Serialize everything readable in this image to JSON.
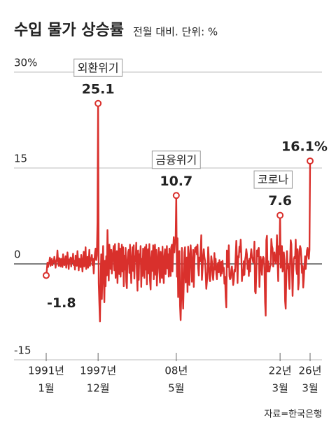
{
  "chart_data": {
    "type": "line",
    "title": "수입 물가 상승률",
    "subtitle": "전월 대비. 단위: %",
    "source": "자료=한국은행",
    "color": "#d9302c",
    "ylim": [
      -15,
      30
    ],
    "yticks": [
      -15,
      0,
      15,
      {
        "value": 30,
        "label": "30%"
      }
    ],
    "grid": true,
    "xticks": [
      {
        "value": "1991-01",
        "label": [
          "1991년",
          "1월"
        ]
      },
      {
        "value": "1997-12",
        "label": [
          "1997년",
          "12월"
        ]
      },
      {
        "value": "2008-05",
        "label": [
          "08년",
          "5월"
        ]
      },
      {
        "value": "2022-03",
        "label": [
          "22년",
          "3월"
        ]
      },
      {
        "value": "2026-03",
        "label": [
          "26년",
          "3월"
        ]
      }
    ],
    "annotations": [
      {
        "x": "1997-12",
        "text": "외환위기"
      },
      {
        "x": "2008-05",
        "text": "금융위기"
      },
      {
        "x": "2022-03",
        "text": "코로나"
      }
    ],
    "x": [
      "1991-01",
      "1991-02",
      "1991-03",
      "1991-04",
      "1991-05",
      "1991-06",
      "1991-07",
      "1991-08",
      "1991-09",
      "1991-10",
      "1991-11",
      "1991-12",
      "1992-01",
      "1992-02",
      "1992-03",
      "1992-04",
      "1992-05",
      "1992-06",
      "1992-07",
      "1992-08",
      "1992-09",
      "1992-10",
      "1992-11",
      "1992-12",
      "1993-01",
      "1993-02",
      "1993-03",
      "1993-04",
      "1993-05",
      "1993-06",
      "1993-07",
      "1993-08",
      "1993-09",
      "1993-10",
      "1993-11",
      "1993-12",
      "1994-01",
      "1994-02",
      "1994-03",
      "1994-04",
      "1994-05",
      "1994-06",
      "1994-07",
      "1994-08",
      "1994-09",
      "1994-10",
      "1994-11",
      "1994-12",
      "1995-01",
      "1995-02",
      "1995-03",
      "1995-04",
      "1995-05",
      "1995-06",
      "1995-07",
      "1995-08",
      "1995-09",
      "1995-10",
      "1995-11",
      "1995-12",
      "1996-01",
      "1996-02",
      "1996-03",
      "1996-04",
      "1996-05",
      "1996-06",
      "1996-07",
      "1996-08",
      "1996-09",
      "1996-10",
      "1996-11",
      "1996-12",
      "1997-01",
      "1997-02",
      "1997-03",
      "1997-04",
      "1997-05",
      "1997-06",
      "1997-07",
      "1997-08",
      "1997-09",
      "1997-10",
      "1997-11",
      "1997-12",
      "1998-01",
      "1998-02",
      "1998-03",
      "1998-04",
      "1998-05",
      "1998-06",
      "1998-07",
      "1998-08",
      "1998-09",
      "1998-10",
      "1998-11",
      "1998-12",
      "1999-01",
      "1999-02",
      "1999-03",
      "1999-04",
      "1999-05",
      "1999-06",
      "1999-07",
      "1999-08",
      "1999-09",
      "1999-10",
      "1999-11",
      "1999-12",
      "2000-01",
      "2000-02",
      "2000-03",
      "2000-04",
      "2000-05",
      "2000-06",
      "2000-07",
      "2000-08",
      "2000-09",
      "2000-10",
      "2000-11",
      "2000-12",
      "2001-01",
      "2001-02",
      "2001-03",
      "2001-04",
      "2001-05",
      "2001-06",
      "2001-07",
      "2001-08",
      "2001-09",
      "2001-10",
      "2001-11",
      "2001-12",
      "2002-01",
      "2002-02",
      "2002-03",
      "2002-04",
      "2002-05",
      "2002-06",
      "2002-07",
      "2002-08",
      "2002-09",
      "2002-10",
      "2002-11",
      "2002-12",
      "2003-01",
      "2003-02",
      "2003-03",
      "2003-04",
      "2003-05",
      "2003-06",
      "2003-07",
      "2003-08",
      "2003-09",
      "2003-10",
      "2003-11",
      "2003-12",
      "2004-01",
      "2004-02",
      "2004-03",
      "2004-04",
      "2004-05",
      "2004-06",
      "2004-07",
      "2004-08",
      "2004-09",
      "2004-10",
      "2004-11",
      "2004-12",
      "2005-01",
      "2005-02",
      "2005-03",
      "2005-04",
      "2005-05",
      "2005-06",
      "2005-07",
      "2005-08",
      "2005-09",
      "2005-10",
      "2005-11",
      "2005-12",
      "2006-01",
      "2006-02",
      "2006-03",
      "2006-04",
      "2006-05",
      "2006-06",
      "2006-07",
      "2006-08",
      "2006-09",
      "2006-10",
      "2006-11",
      "2006-12",
      "2007-01",
      "2007-02",
      "2007-03",
      "2007-04",
      "2007-05",
      "2007-06",
      "2007-07",
      "2007-08",
      "2007-09",
      "2007-10",
      "2007-11",
      "2007-12",
      "2008-01",
      "2008-02",
      "2008-03",
      "2008-04",
      "2008-05",
      "2008-06",
      "2008-07",
      "2008-08",
      "2008-09",
      "2008-10",
      "2008-11",
      "2008-12",
      "2009-01",
      "2009-02",
      "2009-03",
      "2009-04",
      "2009-05",
      "2009-06",
      "2009-07",
      "2009-08",
      "2009-09",
      "2009-10",
      "2009-11",
      "2009-12",
      "2010-01",
      "2010-02",
      "2010-03",
      "2010-04",
      "2010-05",
      "2010-06",
      "2010-07",
      "2010-08",
      "2010-09",
      "2010-10",
      "2010-11",
      "2010-12",
      "2011-01",
      "2011-02",
      "2011-03",
      "2011-04",
      "2011-05",
      "2011-06",
      "2011-07",
      "2011-08",
      "2011-09",
      "2011-10",
      "2011-11",
      "2011-12",
      "2012-01",
      "2012-02",
      "2012-03",
      "2012-04",
      "2012-05",
      "2012-06",
      "2012-07",
      "2012-08",
      "2012-09",
      "2012-10",
      "2012-11",
      "2012-12",
      "2013-01",
      "2013-02",
      "2013-03",
      "2013-04",
      "2013-05",
      "2013-06",
      "2013-07",
      "2013-08",
      "2013-09",
      "2013-10",
      "2013-11",
      "2013-12",
      "2014-01",
      "2014-02",
      "2014-03",
      "2014-04",
      "2014-05",
      "2014-06",
      "2014-07",
      "2014-08",
      "2014-09",
      "2014-10",
      "2014-11",
      "2014-12",
      "2015-01",
      "2015-02",
      "2015-03",
      "2015-04",
      "2015-05",
      "2015-06",
      "2015-07",
      "2015-08",
      "2015-09",
      "2015-10",
      "2015-11",
      "2015-12",
      "2016-01",
      "2016-02",
      "2016-03",
      "2016-04",
      "2016-05",
      "2016-06",
      "2016-07",
      "2016-08",
      "2016-09",
      "2016-10",
      "2016-11",
      "2016-12",
      "2017-01",
      "2017-02",
      "2017-03",
      "2017-04",
      "2017-05",
      "2017-06",
      "2017-07",
      "2017-08",
      "2017-09",
      "2017-10",
      "2017-11",
      "2017-12",
      "2018-01",
      "2018-02",
      "2018-03",
      "2018-04",
      "2018-05",
      "2018-06",
      "2018-07",
      "2018-08",
      "2018-09",
      "2018-10",
      "2018-11",
      "2018-12",
      "2019-01",
      "2019-02",
      "2019-03",
      "2019-04",
      "2019-05",
      "2019-06",
      "2019-07",
      "2019-08",
      "2019-09",
      "2019-10",
      "2019-11",
      "2019-12",
      "2020-01",
      "2020-02",
      "2020-03",
      "2020-04",
      "2020-05",
      "2020-06",
      "2020-07",
      "2020-08",
      "2020-09",
      "2020-10",
      "2020-11",
      "2020-12",
      "2021-01",
      "2021-02",
      "2021-03",
      "2021-04",
      "2021-05",
      "2021-06",
      "2021-07",
      "2021-08",
      "2021-09",
      "2021-10",
      "2021-11",
      "2021-12",
      "2022-01",
      "2022-02",
      "2022-03",
      "2022-04",
      "2022-05",
      "2022-06",
      "2022-07",
      "2022-08",
      "2022-09",
      "2022-10",
      "2022-11",
      "2022-12",
      "2023-01",
      "2023-02",
      "2023-03",
      "2023-04",
      "2023-05",
      "2023-06",
      "2023-07",
      "2023-08",
      "2023-09",
      "2023-10",
      "2023-11",
      "2023-12",
      "2024-01",
      "2024-02",
      "2024-03",
      "2024-04",
      "2024-05",
      "2024-06",
      "2024-07",
      "2024-08",
      "2024-09",
      "2024-10",
      "2024-11",
      "2024-12",
      "2025-01",
      "2025-02",
      "2025-03",
      "2025-04",
      "2025-05",
      "2025-06",
      "2025-07",
      "2025-08",
      "2025-09",
      "2025-10",
      "2025-11",
      "2025-12",
      "2026-01",
      "2026-02",
      "2026-03"
    ],
    "values": [
      -1.8,
      -1.0,
      0.2,
      -0.5,
      0.1,
      0.3,
      1.0,
      -0.3,
      0.4,
      0.8,
      -0.2,
      0.5,
      0.2,
      1.1,
      0.5,
      -0.6,
      0.3,
      0.7,
      2.1,
      0.4,
      -0.3,
      0.9,
      0.6,
      -0.4,
      0.8,
      0.3,
      -0.5,
      1.5,
      0.2,
      -0.2,
      0.6,
      1.2,
      -0.6,
      0.4,
      1.8,
      0.5,
      -0.8,
      0.7,
      0.3,
      1.0,
      -0.4,
      0.9,
      0.2,
      1.6,
      -0.2,
      0.5,
      -0.9,
      1.3,
      0.4,
      -0.3,
      2.0,
      0.6,
      -1.0,
      0.8,
      0.3,
      -0.5,
      1.4,
      0.1,
      -1.2,
      0.7,
      1.9,
      -0.4,
      0.6,
      2.6,
      -0.8,
      0.5,
      1.1,
      -0.6,
      0.3,
      2.2,
      -0.3,
      0.9,
      0.6,
      1.4,
      -0.2,
      0.8,
      -1.5,
      0.4,
      1.7,
      2.4,
      0.6,
      1.3,
      6.5,
      25.1,
      -3.0,
      -6.2,
      -9.0,
      -2.5,
      1.5,
      -5.5,
      -1.0,
      2.8,
      -2.2,
      -6.0,
      0.5,
      -3.5,
      1.2,
      -1.8,
      5.3,
      0.8,
      -2.6,
      3.0,
      1.5,
      -0.8,
      2.2,
      -1.5,
      0.6,
      1.9,
      2.8,
      -1.0,
      3.1,
      -2.2,
      1.0,
      2.0,
      -3.0,
      0.7,
      3.2,
      -1.6,
      2.4,
      -2.0,
      0.5,
      3.0,
      -1.2,
      2.6,
      -3.5,
      1.3,
      -0.9,
      2.5,
      -2.8,
      -3.8,
      0.6,
      1.8,
      2.2,
      -1.4,
      3.0,
      -0.5,
      -3.0,
      0.9,
      2.6,
      -1.1,
      2.9,
      -2.3,
      1.2,
      0.4,
      3.3,
      -1.6,
      -4.2,
      2.1,
      -2.5,
      1.5,
      0.3,
      2.8,
      -3.6,
      0.8,
      -1.9,
      2.4,
      1.6,
      -2.2,
      2.6,
      -0.9,
      3.0,
      -3.2,
      1.8,
      2.3,
      -1.5,
      3.1,
      -2.6,
      -4.0,
      0.9,
      2.0,
      -1.1,
      2.9,
      -2.4,
      1.6,
      3.0,
      -1.7,
      2.2,
      -3.4,
      -1.0,
      1.4,
      2.5,
      -1.3,
      -2.9,
      1.9,
      0.4,
      -2.2,
      2.7,
      -0.8,
      -3.0,
      1.1,
      2.3,
      -1.6,
      0.6,
      2.8,
      -0.7,
      1.5,
      -2.0,
      2.4,
      1.0,
      -1.9,
      2.6,
      3.0,
      -1.2,
      2.1,
      4.2,
      1.8,
      3.5,
      3.9,
      10.7,
      -2.0,
      4.0,
      -5.2,
      1.5,
      2.0,
      -6.5,
      -8.8,
      -5.0,
      2.5,
      -3.6,
      -7.0,
      -3.2,
      1.8,
      2.6,
      -2.9,
      -1.6,
      1.0,
      -4.4,
      2.7,
      1.2,
      -3.3,
      0.5,
      2.9,
      0.9,
      -2.8,
      -1.1,
      2.2,
      -3.6,
      0.3,
      2.5,
      1.9,
      2.7,
      1.5,
      3.0,
      -0.6,
      -1.8,
      1.0,
      0.4,
      2.1,
      4.5,
      -2.5,
      -0.9,
      1.2,
      2.3,
      1.1,
      0.5,
      -1.5,
      -3.9,
      -2.8,
      -1.2,
      2.6,
      0.9,
      -2.3,
      -2.7,
      -1.0,
      1.2,
      0.4,
      -1.7,
      -2.5,
      -1.0,
      1.7,
      -0.9,
      0.8,
      -1.5,
      -2.4,
      -0.3,
      0.2,
      -1.3,
      0.6,
      -0.8,
      -1.9,
      0.3,
      -1.5,
      0.5,
      -1.1,
      -0.6,
      -3.1,
      -2.0,
      -5.2,
      -6.8,
      2.1,
      1.8,
      -0.5,
      2.9,
      -1.9,
      -2.4,
      -2.2,
      -1.0,
      -0.4,
      -1.6,
      -3.3,
      -2.5,
      -0.9,
      -1.2,
      1.3,
      3.6,
      0.8,
      -3.0,
      1.2,
      1.0,
      2.7,
      1.9,
      3.8,
      1.5,
      -2.7,
      -1.0,
      -1.8,
      0.4,
      -1.7,
      0.6,
      1.2,
      2.3,
      1.5,
      -0.8,
      0.5,
      -1.9,
      0.8,
      -1.2,
      1.4,
      2.3,
      1.1,
      0.8,
      0.2,
      0.9,
      3.5,
      -4.3,
      -4.6,
      -1.5,
      2.1,
      1.2,
      2.3,
      2.5,
      -3.6,
      -0.3,
      1.1,
      -0.5,
      -1.7,
      0.7,
      1.1,
      0.9,
      -0.8,
      -6.0,
      -8.1,
      3.7,
      4.4,
      -1.2,
      0.4,
      -1.2,
      -1.2,
      -0.4,
      -0.2,
      3.9,
      2.8,
      2.4,
      -0.4,
      1.2,
      1.8,
      0.6,
      0.1,
      1.4,
      4.5,
      0.3,
      -2.7,
      2.8,
      1.5,
      7.6,
      -0.6,
      0.7,
      2.8,
      -1.2,
      -0.7,
      1.8,
      0.6,
      -5.8,
      -7.0,
      -1.7,
      2.0,
      -0.7,
      0.0,
      -2.5,
      -3.9,
      0.2,
      3.7,
      3.1,
      -0.8,
      -5.0,
      -1.4,
      0.8,
      1.1,
      0.9,
      3.8,
      -0.8,
      -1.6,
      2.3,
      -4.0,
      -2.9,
      1.9,
      2.8,
      2.4,
      1.0,
      -1.4,
      -0.3,
      -3.7,
      -2.3,
      -0.4,
      1.2,
      -0.8,
      0.6,
      2.1,
      2.5,
      1.5,
      0.8,
      2.2,
      16.1
    ],
    "value_labels": [
      "-1.8",
      null,
      null,
      null,
      null,
      null,
      null,
      null,
      null,
      null,
      null,
      null,
      null,
      null,
      null,
      null,
      null,
      null,
      null,
      null,
      null,
      null,
      null,
      null,
      null,
      null,
      null,
      null,
      null,
      null,
      null,
      null,
      null,
      null,
      null,
      null,
      null,
      null,
      null,
      null,
      null,
      null,
      null,
      null,
      null,
      null,
      null,
      null,
      null,
      null,
      null,
      null,
      null,
      null,
      null,
      null,
      null,
      null,
      null,
      null,
      null,
      null,
      null,
      null,
      null,
      null,
      null,
      null,
      null,
      null,
      null,
      null,
      null,
      null,
      null,
      null,
      null,
      null,
      null,
      null,
      null,
      null,
      null,
      "25.1",
      null,
      null,
      null,
      null,
      null,
      null,
      null,
      null,
      null,
      null,
      null,
      null,
      null,
      null,
      null,
      null,
      null,
      null,
      null,
      null,
      null,
      null,
      null,
      null,
      null,
      null,
      null,
      null,
      null,
      null,
      null,
      null,
      null,
      null,
      null,
      null,
      null,
      null,
      null,
      null,
      null,
      null,
      null,
      null,
      null,
      null,
      null,
      null,
      null,
      null,
      null,
      null,
      null,
      null,
      null,
      null,
      null,
      null,
      null,
      null,
      null,
      null,
      null,
      null,
      null,
      null,
      null,
      null,
      null,
      null,
      null,
      null,
      null,
      null,
      null,
      null,
      null,
      null,
      null,
      null,
      null,
      null,
      null,
      null,
      null,
      null,
      null,
      null,
      null,
      null,
      null,
      null,
      null,
      null,
      null,
      null,
      null,
      null,
      null,
      null,
      null,
      null,
      null,
      null,
      null,
      null,
      null,
      null,
      null,
      null,
      null,
      null,
      null,
      null,
      null,
      null,
      null,
      null,
      null,
      null,
      null,
      null,
      null,
      null,
      "10.7",
      null,
      null,
      null,
      null,
      null,
      null,
      null,
      null,
      null,
      null,
      null,
      null,
      null,
      null,
      null,
      null,
      null,
      null,
      null,
      null,
      null,
      null,
      null,
      null,
      null,
      null,
      null,
      null,
      null,
      null,
      null,
      null,
      null,
      null,
      null,
      null,
      null,
      null,
      null,
      null,
      null,
      null,
      null,
      null,
      null,
      null,
      null,
      null,
      null,
      null,
      null,
      null,
      null,
      null,
      null,
      null,
      null,
      null,
      null,
      null,
      null,
      null,
      null,
      null,
      null,
      null,
      null,
      null,
      null,
      null,
      null,
      null,
      null,
      null,
      null,
      null,
      null,
      null,
      null,
      null,
      null,
      null,
      null,
      null,
      null,
      null,
      null,
      null,
      null,
      null,
      null,
      null,
      null,
      null,
      null,
      null,
      null,
      null,
      null,
      null,
      null,
      null,
      null,
      null,
      null,
      null,
      null,
      null,
      null,
      null,
      null,
      null,
      null,
      null,
      null,
      null,
      null,
      null,
      null,
      null,
      null,
      null,
      null,
      null,
      null,
      null,
      null,
      null,
      null,
      null,
      null,
      null,
      null,
      null,
      null,
      null,
      null,
      null,
      null,
      null,
      null,
      null,
      null,
      null,
      null,
      null,
      null,
      null,
      null,
      null,
      null,
      null,
      null,
      null,
      null,
      null,
      null,
      null,
      null,
      null,
      null,
      null,
      null,
      null,
      null,
      "7.6",
      null,
      null,
      null,
      null,
      null,
      null,
      null,
      null,
      null,
      null,
      null,
      null,
      null,
      null,
      null,
      null,
      null,
      null,
      null,
      null,
      null,
      null,
      null,
      null,
      null,
      null,
      null,
      null,
      null,
      null,
      null,
      null,
      null,
      null,
      null,
      null,
      null,
      null,
      null,
      null,
      null,
      null,
      null,
      null,
      null,
      null,
      null,
      "16.1%"
    ]
  }
}
